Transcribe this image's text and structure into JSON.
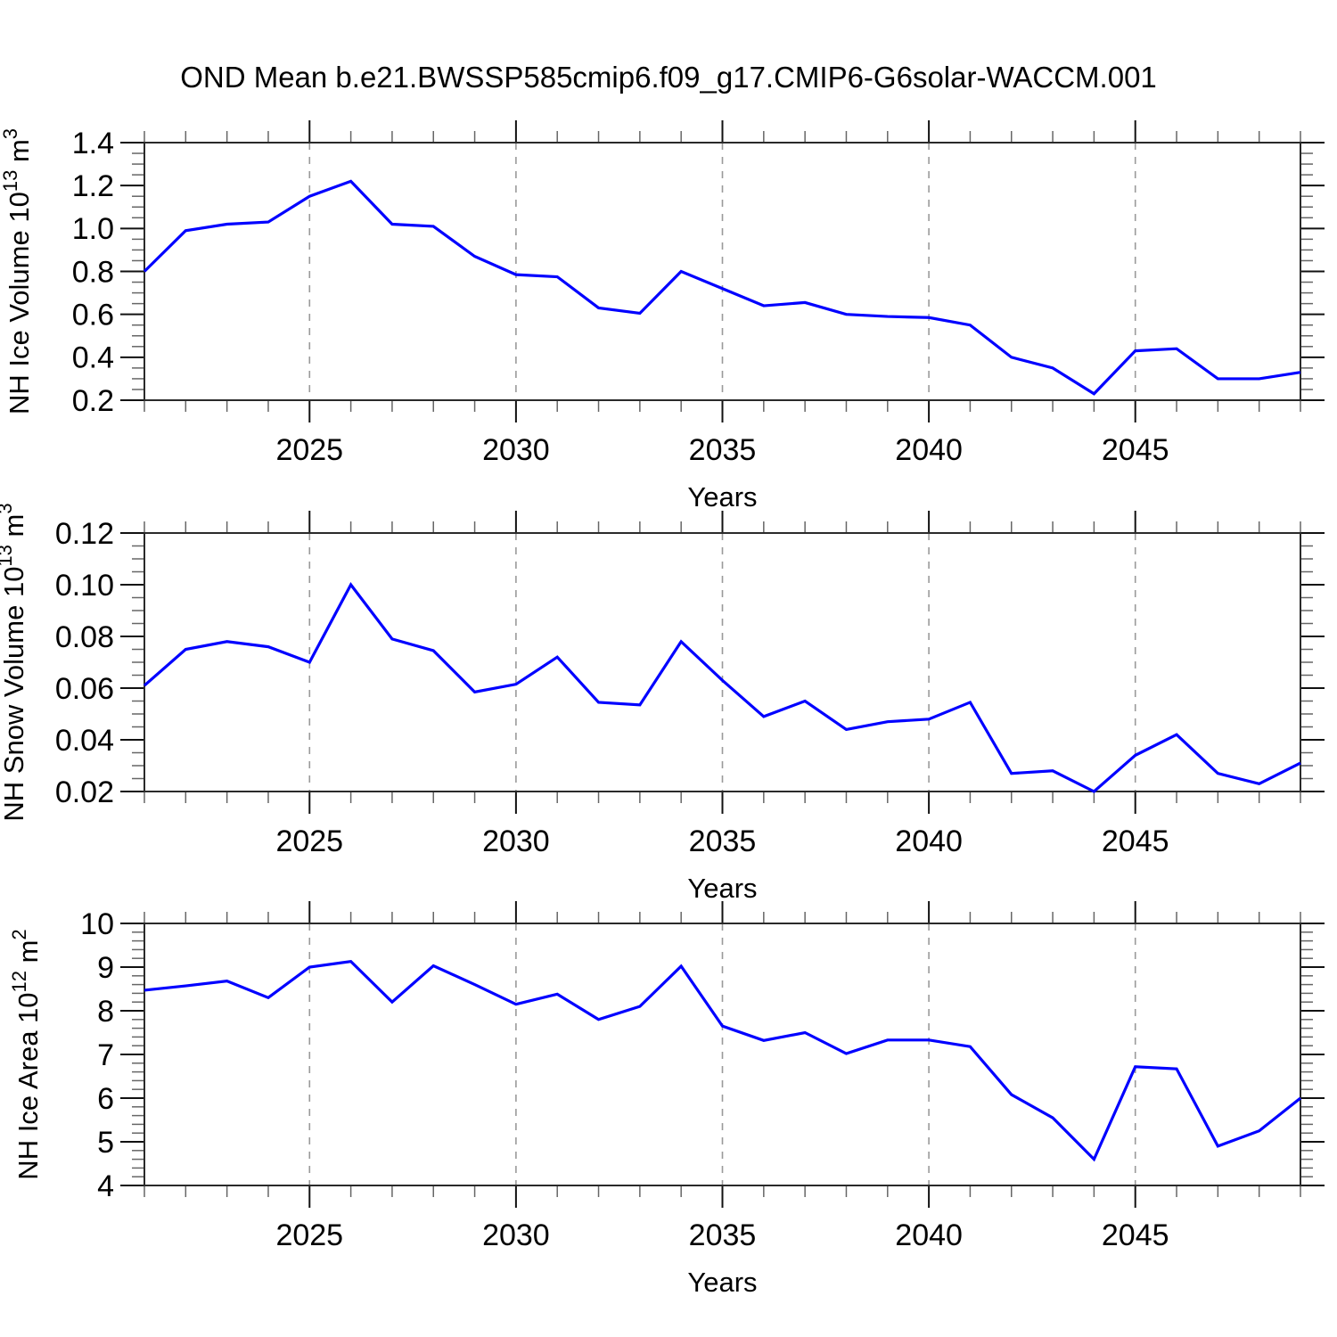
{
  "title": "OND Mean b.e21.BWSSP585cmip6.f09_g17.CMIP6-G6solar-WACCM.001",
  "colors": {
    "series_line": "#0000ff",
    "grid_line": "#9a9a9a",
    "frame": "#2a2a2a",
    "major_tick": "#111111",
    "minor_tick": "#666666"
  },
  "chart_data": [
    {
      "type": "line",
      "title": "",
      "xlabel": "Years",
      "ylabel": "NH Ice Volume 10^13 m^3",
      "ylabel_parts": [
        [
          "NH Ice Volume 10",
          false
        ],
        [
          "13",
          true
        ],
        [
          " m",
          false
        ],
        [
          "3",
          true
        ]
      ],
      "x": [
        2021,
        2022,
        2023,
        2024,
        2025,
        2026,
        2027,
        2028,
        2029,
        2030,
        2031,
        2032,
        2033,
        2034,
        2035,
        2036,
        2037,
        2038,
        2039,
        2040,
        2041,
        2042,
        2043,
        2044,
        2045,
        2046,
        2047,
        2048,
        2049
      ],
      "values": [
        0.8,
        0.99,
        1.02,
        1.03,
        1.15,
        1.22,
        1.02,
        1.01,
        0.87,
        0.785,
        0.775,
        0.63,
        0.605,
        0.8,
        0.72,
        0.64,
        0.655,
        0.6,
        0.59,
        0.585,
        0.55,
        0.4,
        0.35,
        0.23,
        0.43,
        0.44,
        0.3,
        0.3,
        0.33
      ],
      "xlim": [
        2021,
        2049
      ],
      "ylim": [
        0.2,
        1.4
      ],
      "xticks": [
        2025,
        2030,
        2035,
        2040,
        2045
      ],
      "xtick_labels": [
        "2025",
        "2030",
        "2035",
        "2040",
        "2045"
      ],
      "x_minor_step": 1,
      "yticks": [
        0.2,
        0.4,
        0.6,
        0.8,
        1.0,
        1.2,
        1.4
      ],
      "ytick_labels": [
        "0.2",
        "0.4",
        "0.6",
        "0.8",
        "1.0",
        "1.2",
        "1.4"
      ],
      "y_minor_step": 0.05,
      "grid_x": [
        2025,
        2030,
        2035,
        2040,
        2045
      ],
      "grid_style": "dashed-vertical"
    },
    {
      "type": "line",
      "title": "",
      "xlabel": "Years",
      "ylabel": "NH Snow Volume 10^13 m^3",
      "ylabel_parts": [
        [
          "NH Snow Volume 10",
          false
        ],
        [
          "13",
          true
        ],
        [
          " m",
          false
        ],
        [
          "3",
          true
        ]
      ],
      "x": [
        2021,
        2022,
        2023,
        2024,
        2025,
        2026,
        2027,
        2028,
        2029,
        2030,
        2031,
        2032,
        2033,
        2034,
        2035,
        2036,
        2037,
        2038,
        2039,
        2040,
        2041,
        2042,
        2043,
        2044,
        2045,
        2046,
        2047,
        2048,
        2049
      ],
      "values": [
        0.061,
        0.075,
        0.078,
        0.076,
        0.07,
        0.1,
        0.079,
        0.0745,
        0.0585,
        0.0615,
        0.072,
        0.0545,
        0.0535,
        0.078,
        0.063,
        0.049,
        0.055,
        0.044,
        0.047,
        0.048,
        0.0545,
        0.027,
        0.028,
        0.02,
        0.034,
        0.042,
        0.027,
        0.023,
        0.031
      ],
      "xlim": [
        2021,
        2049
      ],
      "ylim": [
        0.02,
        0.12
      ],
      "xticks": [
        2025,
        2030,
        2035,
        2040,
        2045
      ],
      "xtick_labels": [
        "2025",
        "2030",
        "2035",
        "2040",
        "2045"
      ],
      "x_minor_step": 1,
      "yticks": [
        0.02,
        0.04,
        0.06,
        0.08,
        0.1,
        0.12
      ],
      "ytick_labels": [
        "0.02",
        "0.04",
        "0.06",
        "0.08",
        "0.10",
        "0.12"
      ],
      "y_minor_step": 0.005,
      "grid_x": [
        2025,
        2030,
        2035,
        2040,
        2045
      ],
      "grid_style": "dashed-vertical"
    },
    {
      "type": "line",
      "title": "",
      "xlabel": "Years",
      "ylabel": "NH Ice Area 10^12 m^2",
      "ylabel_parts": [
        [
          "NH Ice Area 10",
          false
        ],
        [
          "12",
          true
        ],
        [
          " m",
          false
        ],
        [
          "2",
          true
        ]
      ],
      "x": [
        2021,
        2022,
        2023,
        2024,
        2025,
        2026,
        2027,
        2028,
        2029,
        2030,
        2031,
        2032,
        2033,
        2034,
        2035,
        2036,
        2037,
        2038,
        2039,
        2040,
        2041,
        2042,
        2043,
        2044,
        2045,
        2046,
        2047,
        2048,
        2049
      ],
      "values": [
        8.47,
        8.57,
        8.68,
        8.3,
        9.0,
        9.13,
        8.2,
        9.03,
        8.6,
        8.15,
        8.38,
        7.8,
        8.1,
        9.02,
        7.65,
        7.32,
        7.5,
        7.02,
        7.33,
        7.33,
        7.18,
        6.08,
        5.55,
        4.6,
        6.72,
        6.67,
        4.9,
        5.25,
        6.0
      ],
      "xlim": [
        2021,
        2049
      ],
      "ylim": [
        4,
        10
      ],
      "xticks": [
        2025,
        2030,
        2035,
        2040,
        2045
      ],
      "xtick_labels": [
        "2025",
        "2030",
        "2035",
        "2040",
        "2045"
      ],
      "x_minor_step": 1,
      "yticks": [
        4,
        5,
        6,
        7,
        8,
        9,
        10
      ],
      "ytick_labels": [
        "4",
        "5",
        "6",
        "7",
        "8",
        "9",
        "10"
      ],
      "y_minor_step": 0.2,
      "grid_x": [
        2025,
        2030,
        2035,
        2040,
        2045
      ],
      "grid_style": "dashed-vertical"
    }
  ]
}
